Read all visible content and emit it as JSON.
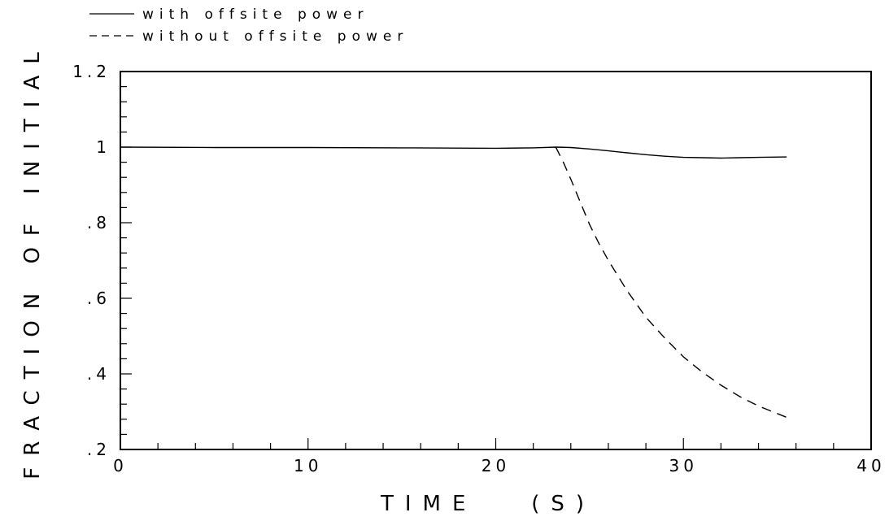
{
  "chart_data": {
    "type": "line",
    "xlabel": "TIME   (S)",
    "ylabel": "FRACTION OF INITIAL",
    "xlim": [
      0,
      40
    ],
    "ylim": [
      0.2,
      1.2
    ],
    "x_ticks": [
      0,
      10,
      20,
      30,
      40
    ],
    "x_tick_labels": [
      "0",
      "10",
      "20",
      "30",
      "40"
    ],
    "y_ticks": [
      0.2,
      0.4,
      0.6,
      0.8,
      1.0,
      1.2
    ],
    "y_tick_labels": [
      ".2",
      ".4",
      ".6",
      ".8",
      "1",
      "1.2"
    ],
    "grid": false,
    "legend_position": "top-left",
    "series": [
      {
        "name": "with offsite power",
        "style": "solid",
        "color": "#000000",
        "x": [
          0,
          5,
          10,
          15,
          20,
          22,
          23.2,
          24,
          25,
          26,
          27,
          28,
          29,
          30,
          31,
          32,
          33,
          34,
          35.5
        ],
        "y": [
          1.0,
          0.999,
          0.999,
          0.998,
          0.997,
          0.998,
          1.0,
          0.999,
          0.995,
          0.99,
          0.985,
          0.98,
          0.976,
          0.973,
          0.972,
          0.971,
          0.972,
          0.973,
          0.974
        ]
      },
      {
        "name": "without offsite power",
        "style": "dashed",
        "color": "#000000",
        "x": [
          23.2,
          23.6,
          24,
          24.5,
          25,
          25.5,
          26,
          27,
          28,
          29,
          30,
          31,
          32,
          33,
          34,
          35.5
        ],
        "y": [
          1.0,
          0.96,
          0.915,
          0.855,
          0.795,
          0.745,
          0.7,
          0.62,
          0.55,
          0.495,
          0.445,
          0.405,
          0.37,
          0.34,
          0.315,
          0.285
        ]
      }
    ]
  }
}
